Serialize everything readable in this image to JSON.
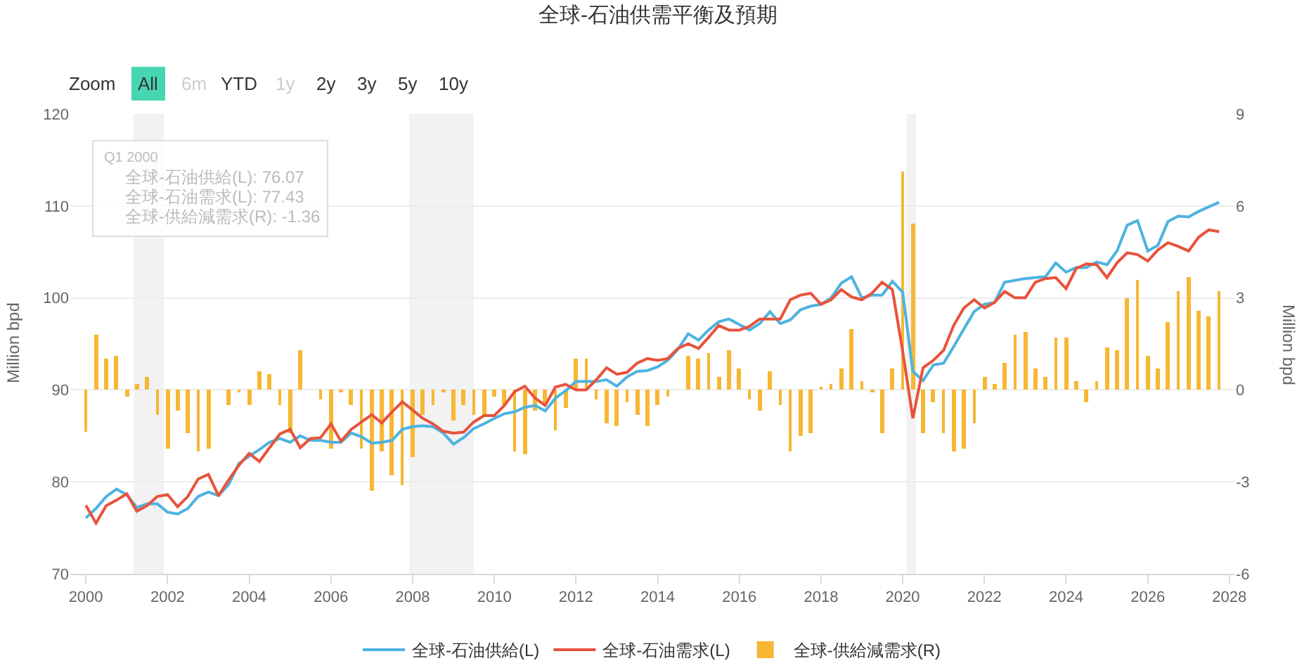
{
  "chart_data": {
    "type": "line",
    "title": "全球-石油供需平衡及預期",
    "ylabel": "Million bpd",
    "y2label": "Million bpd",
    "x": [
      "2000-01",
      "2000-04",
      "2000-07",
      "2000-10",
      "2001-01",
      "2001-04",
      "2001-07",
      "2001-10",
      "2002-01",
      "2002-04",
      "2002-07",
      "2002-10",
      "2003-01",
      "2003-04",
      "2003-07",
      "2003-10",
      "2004-01",
      "2004-04",
      "2004-07",
      "2004-10",
      "2005-01",
      "2005-04",
      "2005-07",
      "2005-10",
      "2006-01",
      "2006-04",
      "2006-07",
      "2006-10",
      "2007-01",
      "2007-04",
      "2007-07",
      "2007-10",
      "2008-01",
      "2008-04",
      "2008-07",
      "2008-10",
      "2009-01",
      "2009-04",
      "2009-07",
      "2009-10",
      "2010-01",
      "2010-04",
      "2010-07",
      "2010-10",
      "2011-01",
      "2011-04",
      "2011-07",
      "2011-10",
      "2012-01",
      "2012-04",
      "2012-07",
      "2012-10",
      "2013-01",
      "2013-04",
      "2013-07",
      "2013-10",
      "2014-01",
      "2014-04",
      "2014-07",
      "2014-10",
      "2015-01",
      "2015-04",
      "2015-07",
      "2015-10",
      "2016-01",
      "2016-04",
      "2016-07",
      "2016-10",
      "2017-01",
      "2017-04",
      "2017-07",
      "2017-10",
      "2018-01",
      "2018-04",
      "2018-07",
      "2018-10",
      "2019-01",
      "2019-04",
      "2019-07",
      "2019-10",
      "2020-01",
      "2020-04",
      "2020-07",
      "2020-10",
      "2021-01",
      "2021-04",
      "2021-07",
      "2021-10",
      "2022-01",
      "2022-04",
      "2022-07",
      "2022-10",
      "2023-01",
      "2023-04",
      "2023-07",
      "2023-10",
      "2024-01",
      "2024-04",
      "2024-07",
      "2024-10",
      "2025-01",
      "2025-04",
      "2025-07",
      "2025-10",
      "2026-01",
      "2026-04",
      "2026-07",
      "2026-10",
      "2027-01",
      "2027-04",
      "2027-07",
      "2027-10"
    ],
    "series": [
      {
        "name": "全球-石油供給(L)",
        "color": "#4db3e0",
        "values": [
          76.07,
          77.1,
          78.4,
          79.2,
          78.6,
          77.2,
          77.6,
          77.6,
          76.7,
          76.5,
          77.1,
          78.4,
          78.9,
          78.5,
          79.7,
          82.0,
          82.8,
          83.5,
          84.3,
          84.7,
          84.3,
          85.0,
          84.5,
          84.5,
          84.3,
          84.3,
          85.3,
          84.9,
          84.2,
          84.3,
          84.5,
          85.7,
          86.0,
          86.1,
          86.0,
          85.3,
          84.1,
          84.8,
          85.8,
          86.3,
          86.9,
          87.4,
          87.6,
          88.1,
          88.3,
          87.7,
          89.1,
          89.9,
          90.9,
          90.9,
          90.9,
          91.1,
          90.4,
          91.4,
          92.0,
          92.1,
          92.5,
          93.2,
          94.4,
          96.1,
          95.4,
          96.5,
          97.4,
          97.7,
          97.1,
          96.5,
          97.2,
          98.5,
          97.2,
          97.6,
          98.7,
          99.1,
          99.3,
          100.0,
          101.6,
          102.3,
          100.0,
          100.3,
          100.3,
          101.8,
          100.6,
          92.0,
          91.0,
          92.7,
          92.9,
          94.7,
          96.6,
          98.5,
          99.3,
          99.5,
          101.7,
          101.9,
          102.1,
          102.2,
          102.3,
          103.8,
          102.8,
          103.3,
          103.3,
          103.9,
          103.6,
          105.1,
          107.9,
          108.4,
          105.1,
          105.7,
          108.3,
          108.9,
          108.8,
          109.4,
          109.9,
          110.4
        ]
      },
      {
        "name": "全球-石油需求(L)",
        "color": "#e8533c",
        "values": [
          77.43,
          75.5,
          77.4,
          78.0,
          78.7,
          76.8,
          77.4,
          78.4,
          78.6,
          77.3,
          78.4,
          80.3,
          80.8,
          78.5,
          80.2,
          81.8,
          83.1,
          82.2,
          83.7,
          85.2,
          85.7,
          83.7,
          84.7,
          84.8,
          86.3,
          84.4,
          85.7,
          86.5,
          87.3,
          86.4,
          87.6,
          88.7,
          87.8,
          86.9,
          86.3,
          85.5,
          85.3,
          85.4,
          86.5,
          87.2,
          87.2,
          88.3,
          89.8,
          90.4,
          89.1,
          88.3,
          90.3,
          90.6,
          90.0,
          90.0,
          91.1,
          92.4,
          91.7,
          91.9,
          92.9,
          93.4,
          93.2,
          93.4,
          94.5,
          95.0,
          94.5,
          95.7,
          97.0,
          96.5,
          96.5,
          96.9,
          97.7,
          97.7,
          97.7,
          99.8,
          100.3,
          100.5,
          99.3,
          99.8,
          100.9,
          100.1,
          99.8,
          100.5,
          101.7,
          100.9,
          94.2,
          86.9,
          92.4,
          93.2,
          94.3,
          97.0,
          98.9,
          99.8,
          98.9,
          99.5,
          100.7,
          100.0,
          100.0,
          101.7,
          102.1,
          102.2,
          101.0,
          103.2,
          103.7,
          103.6,
          102.2,
          103.8,
          104.9,
          104.7,
          104.0,
          105.2,
          106.0,
          105.6,
          105.1,
          106.6,
          107.4,
          107.2
        ]
      },
      {
        "name": "全球-供給減需求(R)",
        "type": "bar",
        "axis": "y2",
        "color": "#f7b733",
        "values": [
          -1.36,
          1.8,
          1.0,
          1.1,
          -0.2,
          0.2,
          0.4,
          -0.8,
          -1.9,
          -0.7,
          -1.4,
          -2.0,
          -1.9,
          0,
          -0.5,
          -0.1,
          -0.5,
          0.6,
          0.5,
          -0.5,
          -1.4,
          1.3,
          0,
          -0.3,
          -1.9,
          -0.1,
          -0.5,
          -1.9,
          -3.3,
          -2.0,
          -2.8,
          -3.1,
          -2.2,
          -0.8,
          -0.5,
          -0.1,
          -1.0,
          -0.5,
          -0.8,
          -0.8,
          -0.2,
          -0.5,
          -2.0,
          -2.1,
          -0.7,
          -0.5,
          -1.3,
          -0.6,
          1.0,
          1.0,
          -0.3,
          -1.1,
          -1.2,
          -0.4,
          -0.8,
          -1.2,
          -0.5,
          -0.2,
          0,
          1.1,
          1.0,
          1.2,
          0.4,
          1.3,
          0.7,
          -0.3,
          -0.7,
          0.6,
          -0.5,
          -2.0,
          -1.5,
          -1.4,
          0.1,
          0.2,
          0.7,
          2.0,
          0.3,
          -0.1,
          -1.4,
          0.7,
          7.1,
          5.4,
          -1.4,
          -0.4,
          -1.4,
          -2.0,
          -1.9,
          -1.1,
          0.4,
          0.2,
          0.9,
          1.8,
          1.9,
          0.7,
          0.4,
          1.7,
          1.7,
          0.3,
          -0.4,
          0.3,
          1.4,
          1.3,
          3.0,
          3.6,
          1.1,
          0.7,
          2.2,
          3.2,
          3.7,
          2.6,
          2.4,
          3.2
        ]
      }
    ],
    "xlim": [
      "1999-08-15",
      "2028-02-15"
    ],
    "xticks": [
      "2000",
      "2002",
      "2004",
      "2006",
      "2008",
      "2010",
      "2012",
      "2014",
      "2016",
      "2018",
      "2020",
      "2022",
      "2024",
      "2026",
      "2028"
    ],
    "ylim": [
      70,
      120
    ],
    "yticks": [
      70,
      80,
      90,
      100,
      110,
      120
    ],
    "y2lim": [
      -6,
      9
    ],
    "y2ticks": [
      -6,
      -3,
      0,
      3,
      6,
      9
    ],
    "bands": [
      {
        "axis": "x",
        "from": "2001-03-01",
        "to": "2001-11-30",
        "color": "#f2f2f2"
      },
      {
        "axis": "x",
        "from": "2007-12-01",
        "to": "2009-06-30",
        "color": "#f2f2f2"
      },
      {
        "axis": "x",
        "from": "2020-02-01",
        "to": "2020-04-30",
        "color": "#f2f2f2"
      }
    ],
    "grid": "y",
    "legend": "bottom",
    "marker": "none",
    "line_style": "solid",
    "annotations": [
      "Zoom",
      "All",
      "6m",
      "YTD",
      "1y",
      "2y",
      "3y",
      "5y",
      "10y",
      "Q1 2000",
      "全球-石油供給(L): 76.07",
      "全球-石油需求(L): 77.43",
      "全球-供給減需求(R): -1.36"
    ]
  }
}
